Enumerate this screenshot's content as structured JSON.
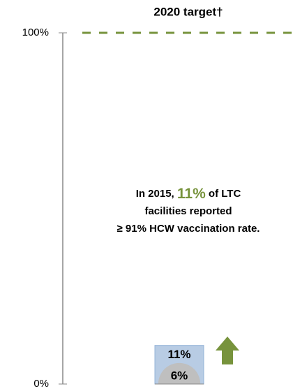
{
  "chart_data": {
    "type": "bar",
    "categories": [
      null
    ],
    "series": [
      {
        "color": "#b8cce4",
        "values": [
          11
        ],
        "value_labels": [
          "11%"
        ]
      },
      {
        "color": "#bfbfbf",
        "values": [
          6
        ],
        "value_labels": [
          "6%"
        ]
      }
    ],
    "ylim": [
      0,
      100
    ],
    "yticks": [
      {
        "value": 0,
        "label": "0%"
      },
      {
        "value": 100,
        "label": "100%"
      }
    ],
    "target": {
      "value": 100,
      "label": "2020 target†",
      "color": "#77933c"
    },
    "annotation": {
      "lines": [
        [
          "In 2015, ",
          "11%",
          " of LTC"
        ],
        [
          "facilities  reported"
        ],
        [
          "≥ 91% HCW vaccination rate."
        ]
      ],
      "highlight_color": "#77933c"
    }
  }
}
